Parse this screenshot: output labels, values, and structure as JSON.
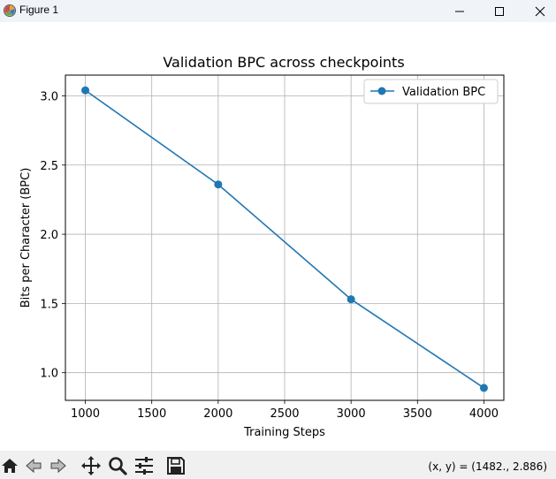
{
  "window": {
    "title": "Figure 1",
    "controls": [
      "minimize",
      "maximize",
      "close"
    ]
  },
  "toolbar": {
    "buttons": [
      {
        "name": "home-icon"
      },
      {
        "name": "back-icon"
      },
      {
        "name": "forward-icon"
      },
      {
        "name": "pan-icon"
      },
      {
        "name": "zoom-icon"
      },
      {
        "name": "configure-subplots-icon"
      },
      {
        "name": "save-icon"
      }
    ],
    "coords": "(x, y) = (1482., 2.886)"
  },
  "chart_data": {
    "type": "line",
    "title": "Validation BPC across checkpoints",
    "xlabel": "Training Steps",
    "ylabel": "Bits per Character (BPC)",
    "x": [
      1000,
      2000,
      3000,
      4000
    ],
    "series": [
      {
        "name": "Validation BPC",
        "values": [
          3.04,
          2.36,
          1.53,
          0.89
        ],
        "color": "#1f77b4",
        "marker": "circle"
      }
    ],
    "xlim": [
      850,
      4150
    ],
    "ylim": [
      0.8,
      3.15
    ],
    "xticks": [
      1000,
      1500,
      2000,
      2500,
      3000,
      3500,
      4000
    ],
    "xtick_labels": [
      "1000",
      "1500",
      "2000",
      "2500",
      "3000",
      "3500",
      "4000"
    ],
    "yticks": [
      1.0,
      1.5,
      2.0,
      2.5,
      3.0
    ],
    "ytick_labels": [
      "1.0",
      "1.5",
      "2.0",
      "2.5",
      "3.0"
    ],
    "grid": true,
    "legend": "top-right"
  }
}
